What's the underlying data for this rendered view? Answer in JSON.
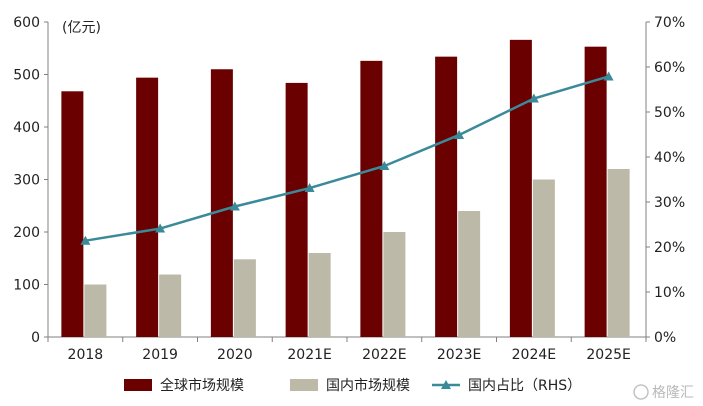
{
  "chart_data": {
    "type": "bar",
    "unit_label": "(亿元)",
    "categories": [
      "2018",
      "2019",
      "2020",
      "2021E",
      "2022E",
      "2023E",
      "2024E",
      "2025E"
    ],
    "series": [
      {
        "name": "全球市场规模",
        "type": "bar",
        "axis": "left",
        "color": "#6b0000",
        "values": [
          468,
          494,
          510,
          484,
          526,
          534,
          566,
          553
        ]
      },
      {
        "name": "国内市场规模",
        "type": "bar",
        "axis": "left",
        "color": "#bcb9a8",
        "values": [
          100,
          119,
          148,
          160,
          200,
          240,
          300,
          320
        ]
      },
      {
        "name": "国内占比（RHS）",
        "type": "line",
        "axis": "right",
        "color": "#3a8a9a",
        "values": [
          21.4,
          24.1,
          29.0,
          33.1,
          38.0,
          44.9,
          53.0,
          57.9
        ]
      }
    ],
    "y_left": {
      "min": 0,
      "max": 600,
      "ticks": [
        0,
        100,
        200,
        300,
        400,
        500,
        600
      ]
    },
    "y_right": {
      "min": 0,
      "max": 70,
      "ticks": [
        "0%",
        "10%",
        "20%",
        "30%",
        "40%",
        "50%",
        "60%",
        "70%"
      ]
    },
    "grid": false,
    "legend_position": "bottom"
  },
  "watermark": "格隆汇"
}
